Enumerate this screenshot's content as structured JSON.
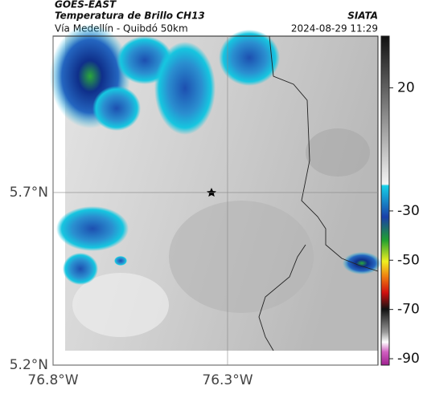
{
  "header": {
    "source": "GOES-EAST",
    "title": "Temperatura de Brillo CH13",
    "agency": "SIATA",
    "subtitle": "Vía Medellín - Quibdó 50km",
    "timestamp": "2024-08-29 11:29"
  },
  "map": {
    "latlim": [
      5.2,
      6.153
    ],
    "lonlim": [
      -76.8,
      -75.869
    ],
    "yticks": [
      {
        "value": 5.7,
        "label": "5.7°N"
      },
      {
        "value": 5.2,
        "label": "5.2°N"
      }
    ],
    "xticks": [
      {
        "value": -76.8,
        "label": "76.8°W"
      },
      {
        "value": -76.3,
        "label": "76.3°W"
      }
    ]
  },
  "colorbar": {
    "lim": [
      -92.6,
      41
    ],
    "ticks": [
      20,
      -30,
      -50,
      -70,
      -90
    ]
  }
}
